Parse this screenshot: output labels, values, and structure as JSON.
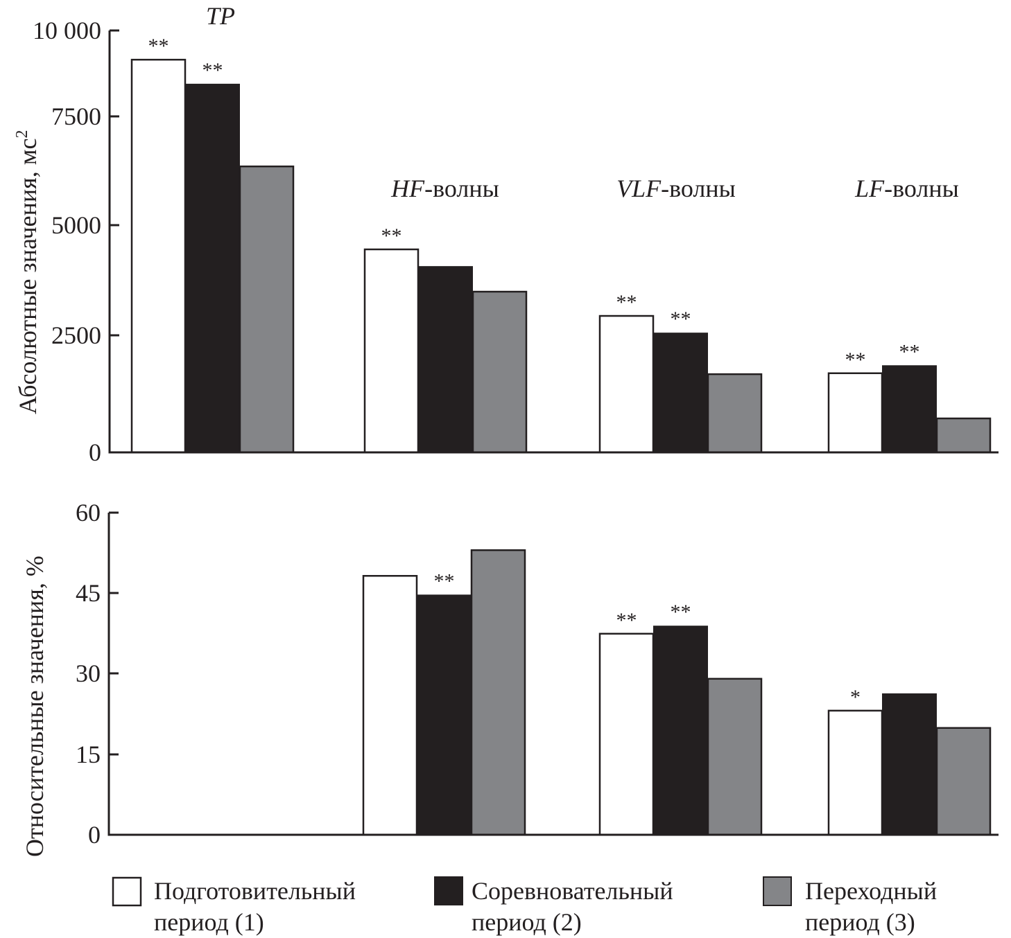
{
  "chart_data": [
    {
      "type": "bar",
      "ylabel": "Абсолютные значения, мс",
      "ylabel_superscript": "2",
      "yticks": [
        0,
        2500,
        5000,
        7500,
        10000
      ],
      "ytick_labels": [
        "0",
        "2500",
        "5000",
        "7500",
        "10 000"
      ],
      "ylim": [
        0,
        10000
      ],
      "categories": [
        "TP",
        "HF",
        "VLF",
        "LF"
      ],
      "category_labels": [
        {
          "italic": "TP",
          "suffix": ""
        },
        {
          "italic": "HF",
          "suffix": "-волны"
        },
        {
          "italic": "VLF",
          "suffix": "-волны"
        },
        {
          "italic": "LF",
          "suffix": "-волны"
        }
      ],
      "series": [
        {
          "name": "Подготовительный период (1)",
          "values": [
            9150,
            4450,
            2940,
            1690
          ],
          "significance": [
            "**",
            "**",
            "**",
            "**"
          ]
        },
        {
          "name": "Соревновательный период (2)",
          "values": [
            8450,
            4070,
            2560,
            1860
          ],
          "significance": [
            "**",
            "",
            "**",
            "**"
          ]
        },
        {
          "name": "Переходный период (3)",
          "values": [
            6350,
            3490,
            1670,
            725
          ],
          "significance": [
            "",
            "",
            "",
            ""
          ]
        }
      ]
    },
    {
      "type": "bar",
      "ylabel": "Относительные значения, %",
      "yticks": [
        0,
        15,
        30,
        45,
        60
      ],
      "ytick_labels": [
        "0",
        "15",
        "30",
        "45",
        "60"
      ],
      "ylim": [
        0,
        60
      ],
      "categories": [
        "TP",
        "HF",
        "VLF",
        "LF"
      ],
      "series": [
        {
          "name": "Подготовительный период (1)",
          "values": [
            null,
            48.2,
            37.4,
            23.1
          ],
          "significance": [
            "",
            "",
            "**",
            "*"
          ]
        },
        {
          "name": "Соревновательный период (2)",
          "values": [
            null,
            44.7,
            38.9,
            26.3
          ],
          "significance": [
            "",
            "**",
            "**",
            ""
          ]
        },
        {
          "name": "Переходный период (3)",
          "values": [
            null,
            53.0,
            29.0,
            19.9
          ],
          "significance": [
            "",
            "",
            "",
            ""
          ]
        }
      ]
    }
  ],
  "legend": {
    "placement": "bottom",
    "items": [
      {
        "line1": "Подготовительный",
        "line2": "период (1)",
        "color": "#ffffff"
      },
      {
        "line1": "Соревновательный",
        "line2": "период (2)",
        "color": "#231f20"
      },
      {
        "line1": "Переходный",
        "line2": "период (3)",
        "color": "#848588"
      }
    ]
  },
  "colors": {
    "series": [
      "#ffffff",
      "#231f20",
      "#848588"
    ],
    "stroke": "#231f20"
  }
}
